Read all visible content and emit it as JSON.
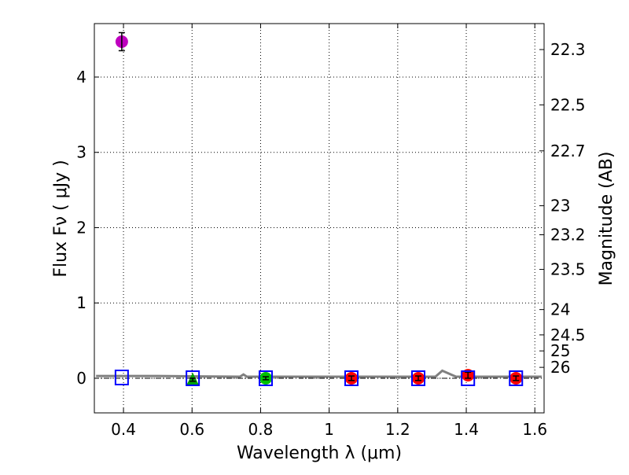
{
  "chart_data": {
    "type": "scatter",
    "xlabel": "Wavelength  λ (μm)",
    "ylabel": "Flux  Fν  ( μJy )",
    "y2label": "Magnitude (AB)",
    "xlim": [
      0.315,
      1.627
    ],
    "ylim": [
      -0.46,
      4.71
    ],
    "grid": true,
    "xticks": [
      0.4,
      0.6,
      0.8,
      1,
      1.2,
      1.4,
      1.6
    ],
    "xtick_labels": [
      "0.4",
      "0.6",
      "0.8",
      "1",
      "1.2",
      "1.4",
      "1.6"
    ],
    "yticks": [
      0,
      1,
      2,
      3,
      4
    ],
    "ytick_labels": [
      "0",
      "1",
      "2",
      "3",
      "4"
    ],
    "mag_ticks": [
      22.3,
      22.5,
      22.7,
      23,
      23.2,
      23.5,
      24,
      24.5,
      25,
      26
    ],
    "mag_tick_labels": [
      "22.3",
      "22.5",
      "22.7",
      "23",
      "23.2",
      "23.5",
      "24",
      "24.5",
      "25",
      "26"
    ],
    "model_line": {
      "color": "#808080",
      "x": [
        0.32,
        0.5,
        0.74,
        0.75,
        0.76,
        1.0,
        1.31,
        1.33,
        1.37,
        1.62
      ],
      "y": [
        0.03,
        0.03,
        0.02,
        0.05,
        0.02,
        0.02,
        0.02,
        0.1,
        0.02,
        0.02
      ]
    },
    "zero_line": {
      "color": "#000000",
      "style": "dashdot",
      "y": 0
    },
    "model_points": {
      "color": "#0000ff",
      "marker": "square",
      "x": [
        0.395,
        0.602,
        0.815,
        1.065,
        1.26,
        1.405,
        1.545
      ],
      "y": [
        0.01,
        0.0,
        0.0,
        0.0,
        0.0,
        0.0,
        0.0
      ]
    },
    "series": [
      {
        "name": "purple",
        "color": "#bf00bf",
        "marker": "circle",
        "x": [
          0.395
        ],
        "y": [
          4.47
        ],
        "err": [
          0.12
        ]
      },
      {
        "name": "green-triangle",
        "color": "#00a000",
        "marker": "triangle",
        "x": [
          0.602
        ],
        "y": [
          -0.02
        ],
        "err": [
          0.02
        ]
      },
      {
        "name": "green-circle",
        "color": "#00c000",
        "marker": "circle",
        "x": [
          0.815
        ],
        "y": [
          0.0
        ],
        "err": [
          0.02
        ]
      },
      {
        "name": "red",
        "color": "#ff0000",
        "marker": "circle",
        "x": [
          1.065,
          1.26,
          1.405,
          1.545
        ],
        "y": [
          0.0,
          0.0,
          0.04,
          0.0
        ],
        "err": [
          0.03,
          0.03,
          0.04,
          0.03
        ]
      }
    ]
  }
}
